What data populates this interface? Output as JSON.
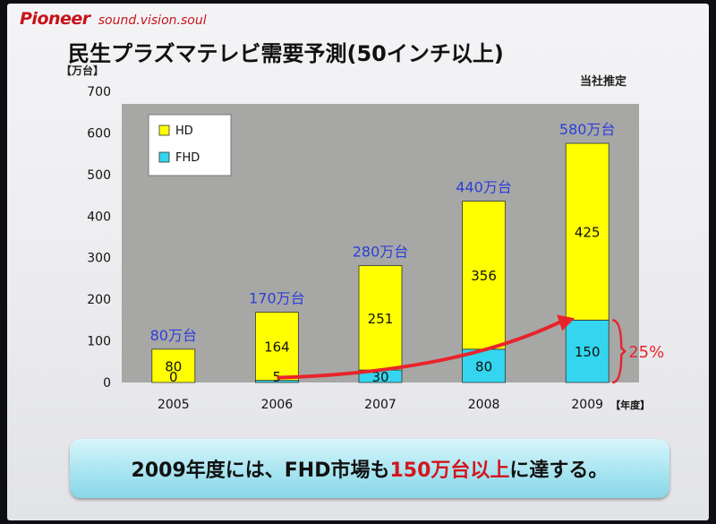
{
  "header": {
    "brand": "Pioneer",
    "tagline": "sound.vision.soul",
    "title": "民生プラズマテレビ需要予測(50インチ以上)",
    "estimate": "当社推定",
    "unit": "【万台】"
  },
  "chart_data": {
    "type": "bar",
    "stacked": true,
    "categories": [
      "2005",
      "2006",
      "2007",
      "2008",
      "2009"
    ],
    "xlabel_suffix": "【年度】",
    "ylim": [
      0,
      700
    ],
    "yticks": [
      0,
      100,
      200,
      300,
      400,
      500,
      600,
      700
    ],
    "legend_placement": "top-left",
    "series": [
      {
        "name": "FHD",
        "color": "#33d6ee",
        "values": [
          0,
          5,
          30,
          80,
          150
        ]
      },
      {
        "name": "HD",
        "color": "#ffff00",
        "values": [
          80,
          164,
          251,
          356,
          425
        ]
      }
    ],
    "value_labels": {
      "FHD": [
        "0",
        "5",
        "30",
        "80",
        "150"
      ],
      "HD": [
        "80",
        "164",
        "251",
        "356",
        "425"
      ]
    },
    "total_labels": [
      "80万台",
      "170万台",
      "280万台",
      "440万台",
      "580万台"
    ],
    "annotation": {
      "text": "25%",
      "color": "#e8242b",
      "arrow_color": "#e8242b"
    },
    "plot_background": "#a7a8a6"
  },
  "banner": {
    "prefix": "2009年度には、FHD市場も",
    "highlight": "150万台以上",
    "suffix": "に達する。"
  }
}
